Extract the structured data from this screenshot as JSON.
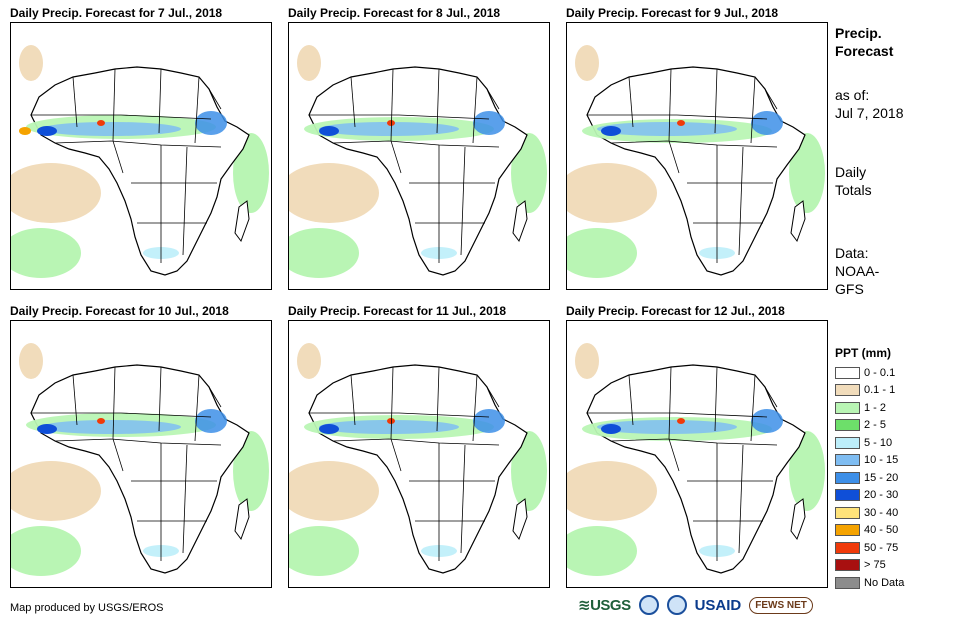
{
  "panels": [
    {
      "title": "Daily Precip. Forecast for 7 Jul., 2018"
    },
    {
      "title": "Daily Precip. Forecast for 8 Jul., 2018"
    },
    {
      "title": "Daily Precip. Forecast for 9 Jul., 2018"
    },
    {
      "title": "Daily Precip. Forecast for 10 Jul., 2018"
    },
    {
      "title": "Daily Precip. Forecast for 11 Jul., 2018"
    },
    {
      "title": "Daily Precip. Forecast for 12 Jul., 2018"
    }
  ],
  "side": {
    "title_line1": "Precip.",
    "title_line2": "Forecast",
    "asof_label": "as of:",
    "asof_date": "Jul 7, 2018",
    "totals_line1": "Daily",
    "totals_line2": "Totals",
    "data_line1": "Data:",
    "data_line2": "NOAA-",
    "data_line3": "GFS"
  },
  "legend": {
    "title": "PPT (mm)",
    "items": [
      {
        "label": "0 - 0.1",
        "color": "#ffffff"
      },
      {
        "label": "0.1 - 1",
        "color": "#f1dcbb"
      },
      {
        "label": "1 - 2",
        "color": "#b9f5b4"
      },
      {
        "label": "2 - 5",
        "color": "#6ddf6a"
      },
      {
        "label": "5 - 10",
        "color": "#bdeefa"
      },
      {
        "label": "10 - 15",
        "color": "#7fbdf2"
      },
      {
        "label": "15 - 20",
        "color": "#3d8fe8"
      },
      {
        "label": "20 - 30",
        "color": "#0f4fd8"
      },
      {
        "label": "30 - 40",
        "color": "#ffe37a"
      },
      {
        "label": "40 - 50",
        "color": "#f5a300"
      },
      {
        "label": "50 - 75",
        "color": "#f03a0a"
      },
      {
        "label": "> 75",
        "color": "#a81010"
      },
      {
        "label": "No Data",
        "color": "#8c8c8c"
      }
    ]
  },
  "footer": {
    "credit": "Map produced by USGS/EROS",
    "logo_usgs": "≋USGS",
    "logo_usaid": "USAID",
    "logo_fews": "FEWS NET"
  }
}
